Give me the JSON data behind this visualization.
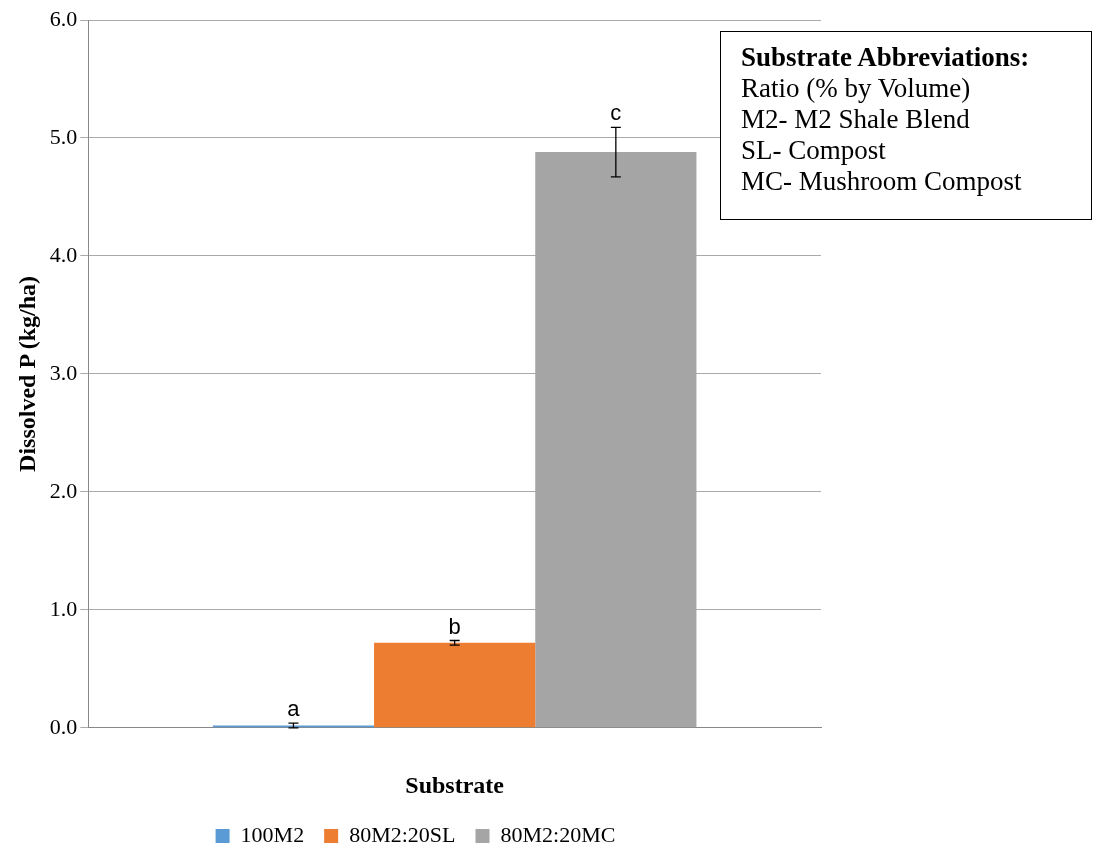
{
  "chart_data": {
    "type": "bar",
    "xlabel": "Substrate",
    "ylabel": "Dissolved P (kg/ha)",
    "categories": [
      null
    ],
    "series": [
      {
        "name": "100M2",
        "color": "#5b9bd5",
        "values": [
          0.02
        ],
        "errors": [
          0.02
        ]
      },
      {
        "name": "80M2:20SL",
        "color": "#ed7d31",
        "values": [
          0.72
        ],
        "errors": [
          0.02
        ]
      },
      {
        "name": "80M2:20MC",
        "color": "#a5a5a5",
        "values": [
          4.88
        ],
        "errors": [
          0.21
        ]
      }
    ],
    "ylim": [
      0,
      6
    ],
    "yticks": [
      {
        "value": 0,
        "label": "0.0"
      },
      {
        "value": 1,
        "label": "1.0"
      },
      {
        "value": 2,
        "label": "2.0"
      },
      {
        "value": 3,
        "label": "3.0"
      },
      {
        "value": 4,
        "label": "4.0"
      },
      {
        "value": 5,
        "label": "5.0"
      },
      {
        "value": 6,
        "label": "6.0"
      }
    ],
    "grid": "y",
    "legend": "bottom",
    "annotations": [
      {
        "text": "a",
        "y": 0.04
      },
      {
        "text": "b",
        "y": 0.74
      },
      {
        "text": "c",
        "y": 5.09
      },
      "Substrate Abbreviations:",
      "Ratio (% by Volume)",
      "M2- M2 Shale Blend",
      "SL- Compost",
      "MC- Mushroom Compost"
    ]
  }
}
